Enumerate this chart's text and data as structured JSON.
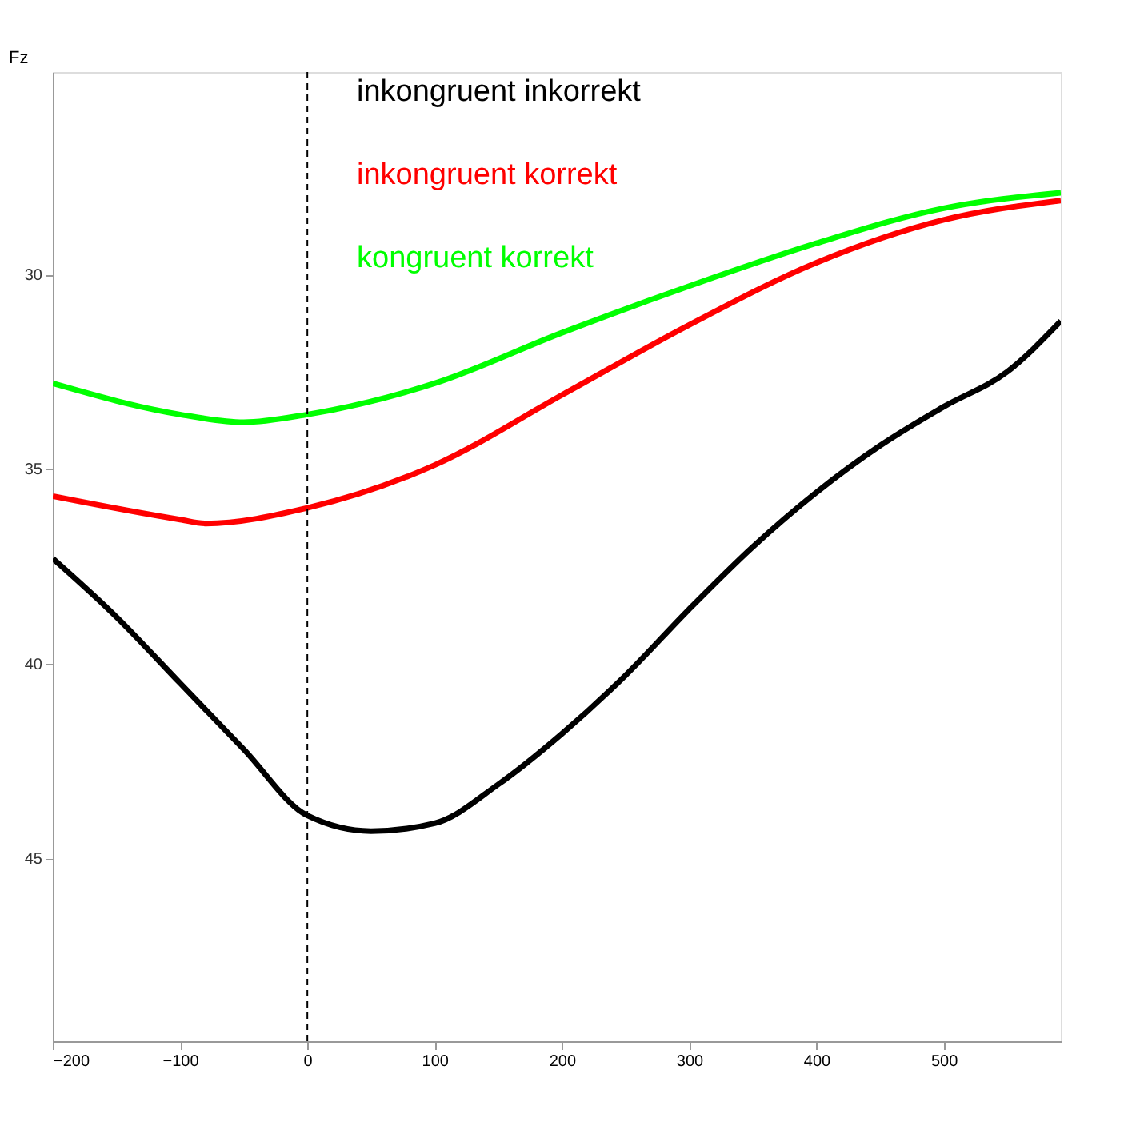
{
  "chart_data": {
    "type": "line",
    "ylabel": "Fz",
    "xlim": [
      -200,
      592
    ],
    "xticks": [
      -200,
      -100,
      0,
      100,
      200,
      300,
      400,
      500
    ],
    "ylim": [
      49.7,
      24.8
    ],
    "yticks": [
      30,
      35,
      40,
      45
    ],
    "grid": false,
    "legend": "top",
    "line_style": "solid",
    "marker": "none",
    "ref_lines": [
      {
        "axis": "x",
        "value": 0,
        "color": "#000000",
        "line_style": "dashed"
      }
    ],
    "series": [
      {
        "name": "inkongruent inkorrekt",
        "color": "#000000",
        "x": [
          -200,
          -150,
          -100,
          -50,
          0,
          50,
          100,
          150,
          200,
          250,
          300,
          350,
          400,
          450,
          500,
          550,
          592
        ],
        "values": [
          37.3,
          38.8,
          40.5,
          42.2,
          43.9,
          44.3,
          44.1,
          43.1,
          41.8,
          40.3,
          38.6,
          37.0,
          35.6,
          34.4,
          33.4,
          32.5,
          31.2
        ]
      },
      {
        "name": "inkongruent korrekt",
        "color": "#ff0000",
        "x": [
          -200,
          -100,
          -80,
          0,
          100,
          200,
          300,
          400,
          500,
          592
        ],
        "values": [
          35.7,
          36.3,
          36.4,
          36.0,
          34.9,
          33.1,
          31.3,
          29.7,
          28.6,
          28.1
        ]
      },
      {
        "name": "kongruent korrekt",
        "color": "#00ff00",
        "x": [
          -200,
          -100,
          -50,
          0,
          100,
          200,
          300,
          400,
          500,
          592
        ],
        "values": [
          32.8,
          33.6,
          33.8,
          33.6,
          32.8,
          31.5,
          30.3,
          29.2,
          28.3,
          27.9
        ]
      }
    ]
  }
}
